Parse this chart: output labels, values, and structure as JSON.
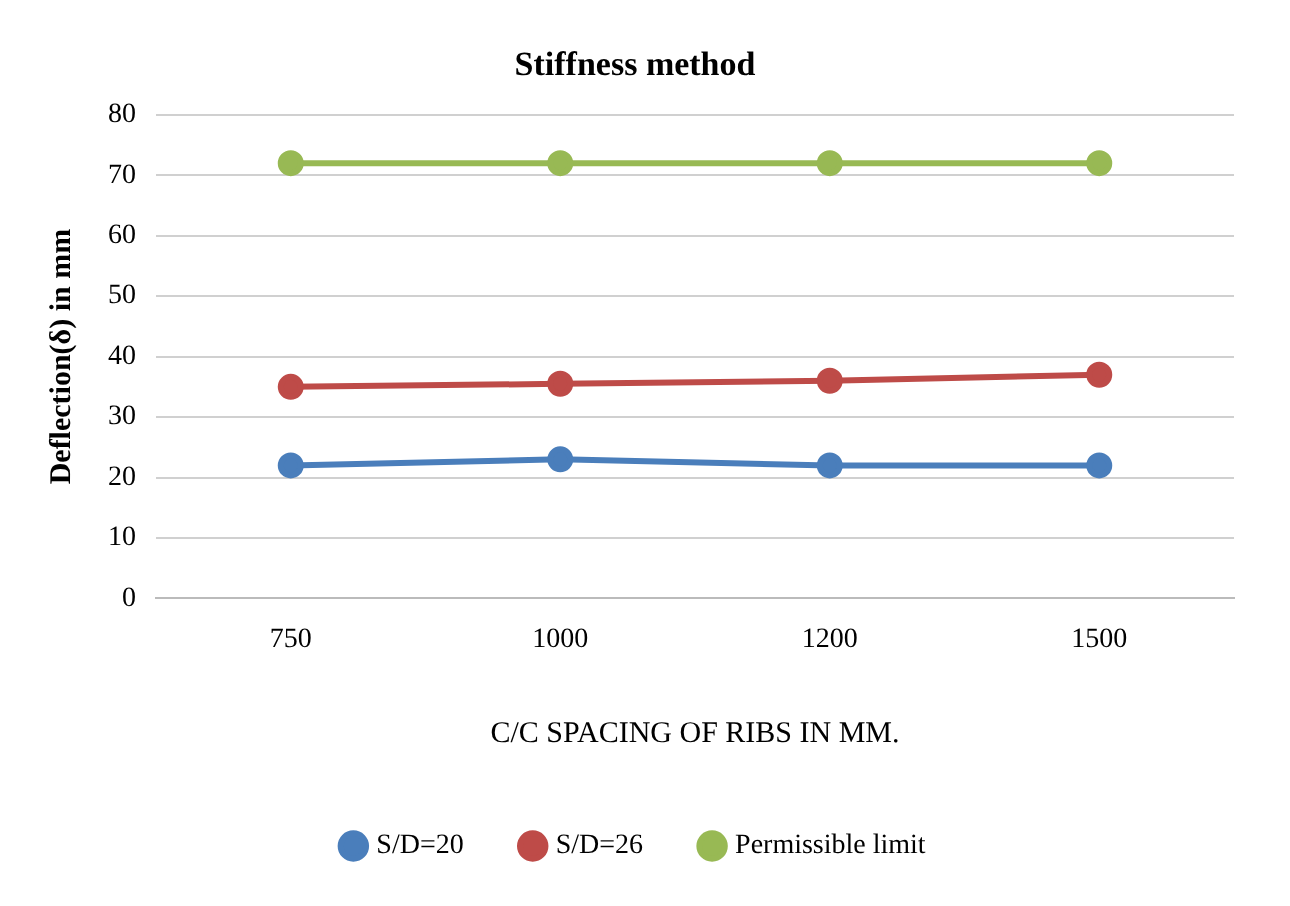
{
  "chart_data": {
    "type": "line",
    "title": "Stiffness method",
    "xlabel": "C/C SPACING OF RIBS IN MM.",
    "ylabel": "Deflection(δ) in mm",
    "categories": [
      "750",
      "1000",
      "1200",
      "1500"
    ],
    "series": [
      {
        "name": "S/D=20",
        "color": "#4a7ebb",
        "values": [
          22,
          23,
          22,
          22
        ]
      },
      {
        "name": "S/D=26",
        "color": "#be4b48",
        "values": [
          35,
          35.5,
          36,
          37
        ]
      },
      {
        "name": "Permissible limit",
        "color": "#98b954",
        "values": [
          72,
          72,
          72,
          72
        ]
      }
    ],
    "ylim": [
      0,
      80
    ],
    "yticks": [
      0,
      10,
      20,
      30,
      40,
      50,
      60,
      70,
      80
    ],
    "grid": "y",
    "legend": "bottom",
    "marker": "circle",
    "line_style": "solid"
  }
}
